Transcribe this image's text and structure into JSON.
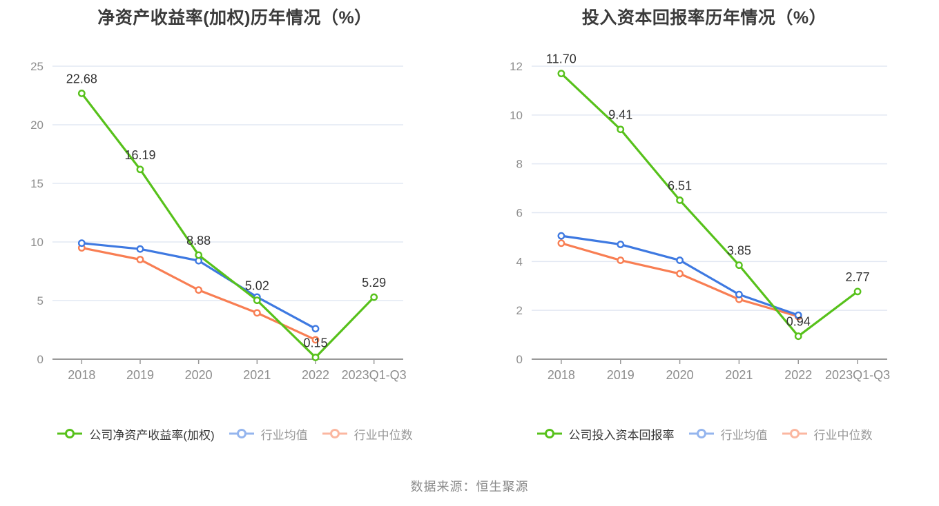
{
  "footer": {
    "source_text": "数据来源：恒生聚源"
  },
  "colors": {
    "grid": "#e2e8f3",
    "axis": "#999999",
    "y_tick_label": "#8e8e8e",
    "x_tick_label": "#8c8c8c",
    "data_label": "#333333",
    "title": "#3b3b3b"
  },
  "chart_data": [
    {
      "type": "line",
      "title": "净资产收益率(加权)历年情况（%）",
      "categories": [
        "2018",
        "2019",
        "2020",
        "2021",
        "2022",
        "2023Q1-Q3"
      ],
      "ylim": [
        0,
        25
      ],
      "yticks": [
        0,
        5,
        10,
        15,
        20,
        25
      ],
      "grid": true,
      "legend_position": "bottom",
      "series": [
        {
          "name": "公司净资产收益率(加权)",
          "color": "#57c11b",
          "values": [
            22.68,
            16.19,
            8.88,
            5.02,
            0.15,
            5.29
          ],
          "data_labels": [
            "22.68",
            "16.19",
            "8.88",
            "5.02",
            "0.15",
            "5.29"
          ]
        },
        {
          "name": "行业均值",
          "color": "#3e79e1",
          "values": [
            9.9,
            9.4,
            8.4,
            5.3,
            2.6,
            null
          ]
        },
        {
          "name": "行业中位数",
          "color": "#f87e53",
          "values": [
            9.5,
            8.5,
            5.9,
            3.95,
            1.65,
            null
          ]
        }
      ]
    },
    {
      "type": "line",
      "title": "投入资本回报率历年情况（%）",
      "categories": [
        "2018",
        "2019",
        "2020",
        "2021",
        "2022",
        "2023Q1-Q3"
      ],
      "ylim": [
        0,
        12
      ],
      "yticks": [
        0,
        2,
        4,
        6,
        8,
        10,
        12
      ],
      "grid": true,
      "legend_position": "bottom",
      "series": [
        {
          "name": "公司投入资本回报率",
          "color": "#57c11b",
          "values": [
            11.7,
            9.41,
            6.51,
            3.85,
            0.94,
            2.77
          ],
          "data_labels": [
            "11.70",
            "9.41",
            "6.51",
            "3.85",
            "0.94",
            "2.77"
          ]
        },
        {
          "name": "行业均值",
          "color": "#3e79e1",
          "values": [
            5.05,
            4.7,
            4.05,
            2.65,
            1.8,
            null
          ]
        },
        {
          "name": "行业中位数",
          "color": "#f87e53",
          "values": [
            4.75,
            4.05,
            3.5,
            2.45,
            1.75,
            null
          ]
        }
      ]
    }
  ]
}
